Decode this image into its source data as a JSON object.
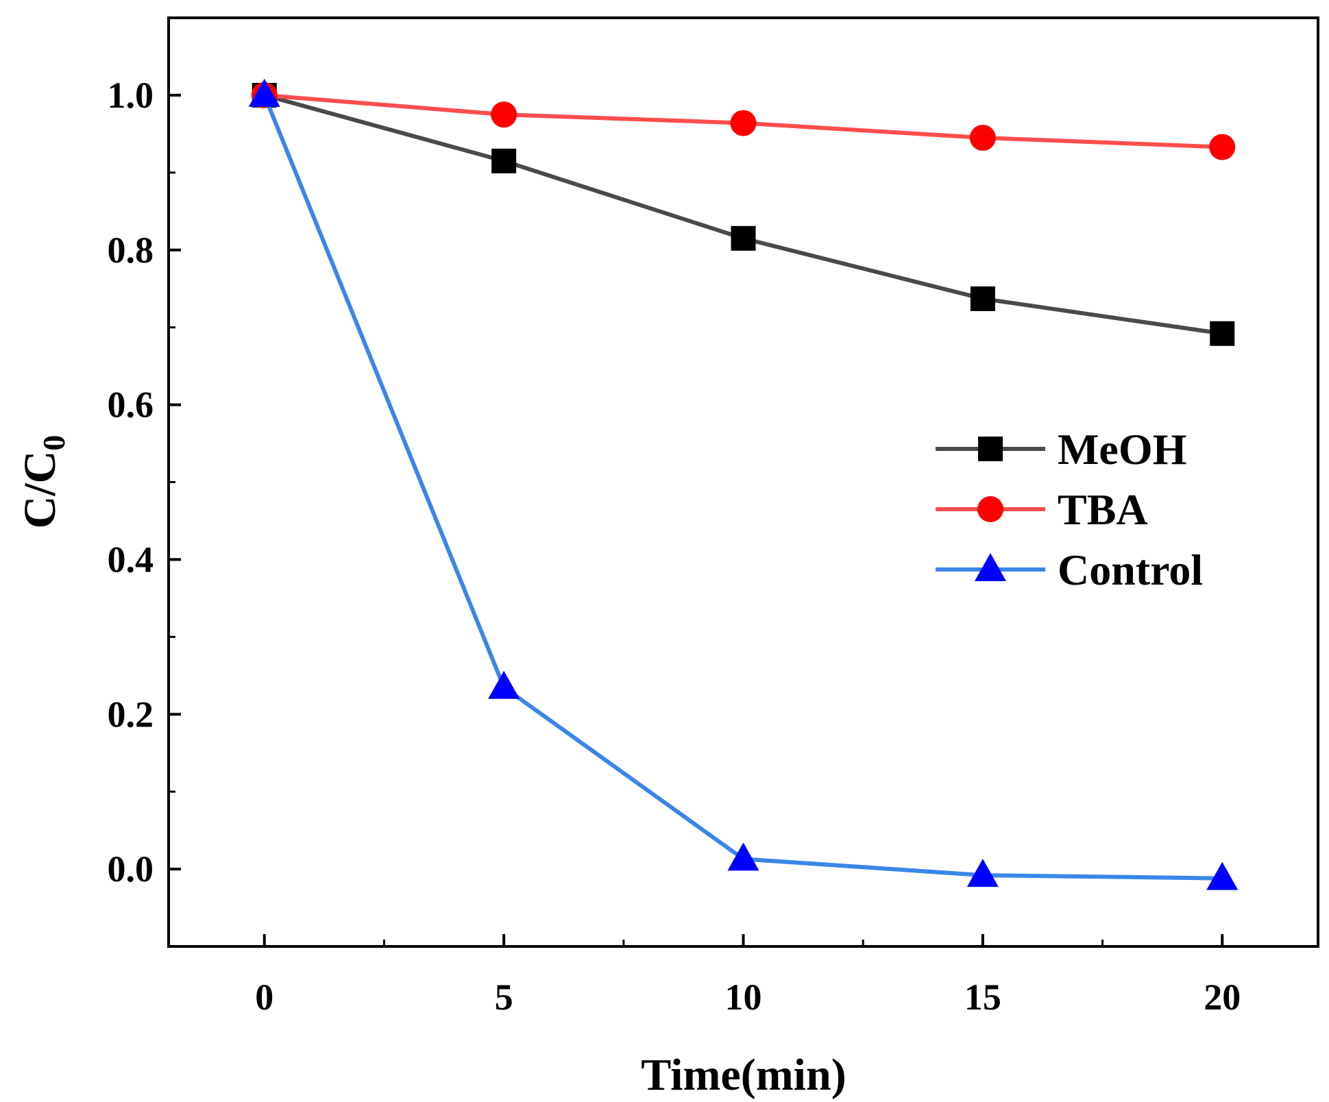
{
  "chart_data": {
    "type": "line",
    "title": "",
    "xlabel": "Time(min)",
    "ylabel": {
      "main": "C/C",
      "subscript": "0"
    },
    "xlim": [
      -2,
      22
    ],
    "ylim": [
      -0.1,
      1.1
    ],
    "x": [
      0,
      5,
      10,
      15,
      20
    ],
    "x_ticks": [
      "0",
      "5",
      "10",
      "15",
      "20"
    ],
    "y_ticks": [
      "0.0",
      "0.2",
      "0.4",
      "0.6",
      "0.8",
      "1.0"
    ],
    "grid": false,
    "legend_position": "center-right",
    "series": [
      {
        "name": "MeOH",
        "marker": "square",
        "line_color": "#4a4a4a",
        "marker_color": "#000000",
        "values": [
          1.0,
          0.915,
          0.815,
          0.737,
          0.692
        ]
      },
      {
        "name": "TBA",
        "marker": "circle",
        "line_color": "#ff4d4d",
        "marker_color": "#ff0000",
        "values": [
          1.0,
          0.975,
          0.964,
          0.945,
          0.933
        ]
      },
      {
        "name": "Control",
        "marker": "triangle",
        "line_color": "#3a86e8",
        "marker_color": "#0000ff",
        "values": [
          1.0,
          0.235,
          0.013,
          -0.008,
          -0.012
        ]
      }
    ]
  }
}
